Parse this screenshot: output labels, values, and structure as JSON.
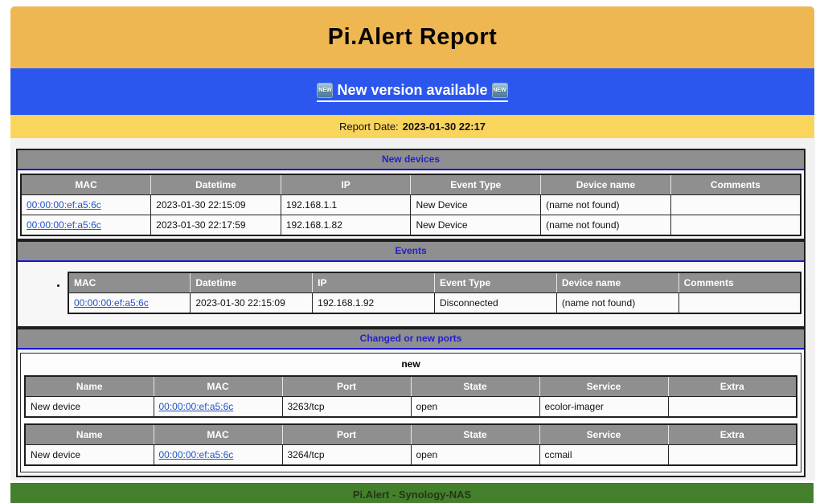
{
  "header": {
    "title": "Pi.Alert Report"
  },
  "version_banner": {
    "badge": "NEW",
    "link_label": "New version available"
  },
  "report_date": {
    "label": "Report Date:",
    "value": "2023-01-30 22:17"
  },
  "sections": {
    "new_devices": {
      "title": "New devices",
      "columns": [
        "MAC",
        "Datetime",
        "IP",
        "Event Type",
        "Device name",
        "Comments"
      ],
      "rows": [
        {
          "mac": "00:00:00:ef:a5:6c",
          "datetime": "2023-01-30 22:15:09",
          "ip": "192.168.1.1",
          "event_type": "New Device",
          "device_name": "(name not found)",
          "comments": ""
        },
        {
          "mac": "00:00:00:ef:a5:6c",
          "datetime": "2023-01-30 22:17:59",
          "ip": "192.168.1.82",
          "event_type": "New Device",
          "device_name": "(name not found)",
          "comments": ""
        }
      ]
    },
    "events": {
      "title": "Events",
      "columns": [
        "MAC",
        "Datetime",
        "IP",
        "Event Type",
        "Device name",
        "Comments"
      ],
      "rows": [
        {
          "mac": "00:00:00:ef:a5:6c",
          "datetime": "2023-01-30 22:15:09",
          "ip": "192.168.1.92",
          "event_type": "Disconnected",
          "device_name": "(name not found)",
          "comments": ""
        }
      ]
    },
    "ports": {
      "title": "Changed or new ports",
      "group_label": "new",
      "columns": [
        "Name",
        "MAC",
        "Port",
        "State",
        "Service",
        "Extra"
      ],
      "tables": [
        {
          "rows": [
            {
              "name": "New device",
              "mac": "00:00:00:ef:a5:6c",
              "port": "3263/tcp",
              "state": "open",
              "service": "ecolor-imager",
              "extra": ""
            }
          ]
        },
        {
          "rows": [
            {
              "name": "New device",
              "mac": "00:00:00:ef:a5:6c",
              "port": "3264/tcp",
              "state": "open",
              "service": "ccmail",
              "extra": ""
            }
          ]
        }
      ]
    }
  },
  "footer": {
    "text": "Pi.Alert - Synology-NAS"
  },
  "colors": {
    "masthead_bg": "#EFB752",
    "version_banner_bg": "#2B57EE",
    "date_bar_bg": "#FAD55E",
    "body_bg": "#F2F2F2",
    "section_header_bg": "#8F8F8F",
    "section_title_text": "#2121CE",
    "section_title_underline": "#1414E0",
    "link_blue": "#2353C4",
    "footer_bg": "#44802C",
    "new_badge_bg": "#6E9BB6"
  }
}
